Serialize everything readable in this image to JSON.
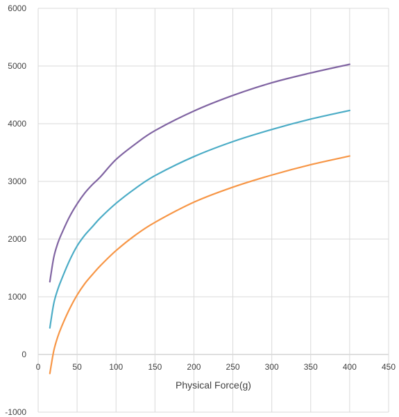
{
  "chart_data": {
    "type": "line",
    "title": "",
    "xlabel": "Physical Force(g)",
    "ylabel": "",
    "xlim": [
      0,
      450
    ],
    "ylim": [
      -1000,
      6000
    ],
    "xticks": [
      0,
      50,
      100,
      150,
      200,
      250,
      300,
      350,
      400,
      450
    ],
    "yticks": [
      -1000,
      0,
      1000,
      2000,
      3000,
      4000,
      5000,
      6000
    ],
    "grid": true,
    "legend": "none",
    "series": [
      {
        "color": "#8064A2",
        "x": [
          15,
          20,
          25,
          30,
          40,
          50,
          60,
          70,
          80,
          100,
          125,
          150,
          200,
          250,
          300,
          350,
          400
        ],
        "y": [
          1260,
          1680,
          1920,
          2090,
          2380,
          2610,
          2800,
          2950,
          3080,
          3380,
          3650,
          3880,
          4220,
          4490,
          4710,
          4880,
          5030
        ]
      },
      {
        "color": "#4BACC6",
        "x": [
          15,
          20,
          25,
          30,
          40,
          50,
          60,
          70,
          80,
          100,
          125,
          150,
          200,
          250,
          300,
          350,
          400
        ],
        "y": [
          460,
          880,
          1120,
          1300,
          1620,
          1880,
          2070,
          2220,
          2370,
          2620,
          2880,
          3100,
          3430,
          3690,
          3900,
          4080,
          4230
        ]
      },
      {
        "color": "#F79646",
        "x": [
          15,
          20,
          25,
          30,
          40,
          50,
          60,
          70,
          80,
          100,
          125,
          150,
          200,
          250,
          300,
          350,
          400
        ],
        "y": [
          -330,
          60,
          300,
          480,
          780,
          1030,
          1230,
          1390,
          1540,
          1800,
          2070,
          2290,
          2640,
          2900,
          3110,
          3290,
          3440
        ]
      }
    ]
  }
}
